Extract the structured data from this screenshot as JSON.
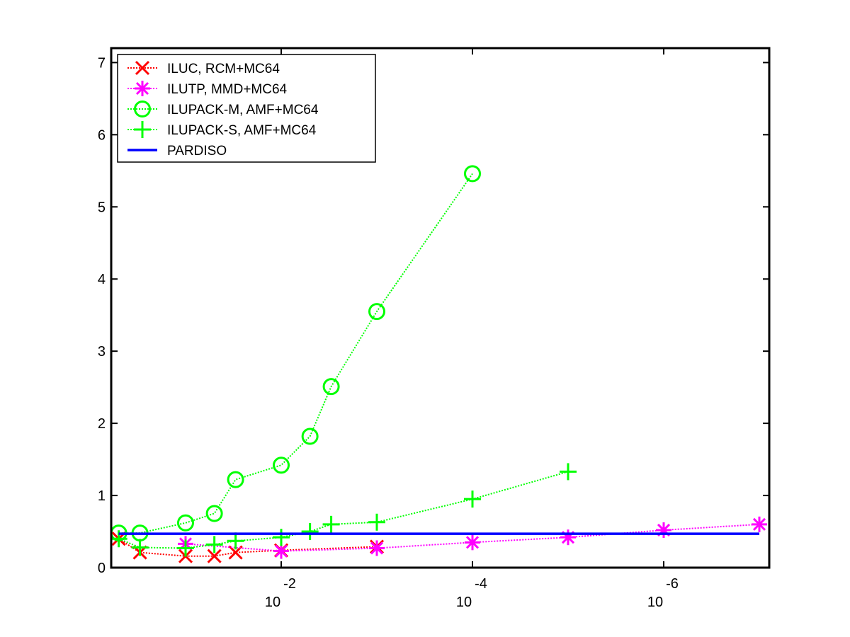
{
  "chart_data": {
    "type": "line",
    "x_scale": "log-reversed",
    "xlim": [
      0.7,
      1e-07
    ],
    "ylim": [
      0,
      7.1
    ],
    "grid": false,
    "legend_position": "top-left",
    "x_ticks": [
      {
        "value": 0.01,
        "base": "10",
        "exp": "-2"
      },
      {
        "value": 0.0001,
        "base": "10",
        "exp": "-4"
      },
      {
        "value": 1e-06,
        "base": "10",
        "exp": "-6"
      }
    ],
    "y_ticks": [
      {
        "value": 0,
        "label": "0"
      },
      {
        "value": 1,
        "label": "1"
      },
      {
        "value": 2,
        "label": "2"
      },
      {
        "value": 3,
        "label": "3"
      },
      {
        "value": 4,
        "label": "4"
      },
      {
        "value": 5,
        "label": "5"
      },
      {
        "value": 6,
        "label": "6"
      },
      {
        "value": 7,
        "label": "7"
      }
    ],
    "series": [
      {
        "name": "ILUC, RCM+MC64",
        "color": "#ff0000",
        "marker": "x",
        "line": "dotted",
        "x": [
          0.5,
          0.3,
          0.1,
          0.05,
          0.03,
          0.01,
          0.001
        ],
        "y": [
          0.4,
          0.21,
          0.16,
          0.16,
          0.21,
          0.24,
          0.29
        ]
      },
      {
        "name": "ILUTP, MMD+MC64",
        "color": "#ff00ff",
        "marker": "asterisk",
        "line": "dotted",
        "x": [
          0.1,
          0.01,
          0.001,
          0.0001,
          1e-05,
          1e-06,
          1e-07
        ],
        "y": [
          0.33,
          0.23,
          0.27,
          0.35,
          0.42,
          0.52,
          0.6
        ]
      },
      {
        "name": "ILUPACK-M, AMF+MC64",
        "color": "#00ff00",
        "marker": "circle",
        "line": "dotted",
        "x": [
          0.5,
          0.3,
          0.1,
          0.05,
          0.03,
          0.01,
          0.005,
          0.003,
          0.001,
          0.0001
        ],
        "y": [
          0.48,
          0.48,
          0.62,
          0.75,
          1.22,
          1.42,
          1.82,
          2.51,
          3.55,
          5.46
        ]
      },
      {
        "name": "ILUPACK-S, AMF+MC64",
        "color": "#00ff00",
        "marker": "plus",
        "line": "dotted",
        "x": [
          0.5,
          0.3,
          0.1,
          0.05,
          0.03,
          0.01,
          0.005,
          0.003,
          0.001,
          0.0001,
          1e-05
        ],
        "y": [
          0.4,
          0.28,
          0.27,
          0.32,
          0.37,
          0.42,
          0.5,
          0.6,
          0.63,
          0.95,
          1.33
        ]
      },
      {
        "name": "PARDISO",
        "color": "#0000ff",
        "marker": "none",
        "line": "solid",
        "x": [
          0.5,
          1e-07
        ],
        "y": [
          0.47,
          0.47
        ]
      }
    ]
  }
}
